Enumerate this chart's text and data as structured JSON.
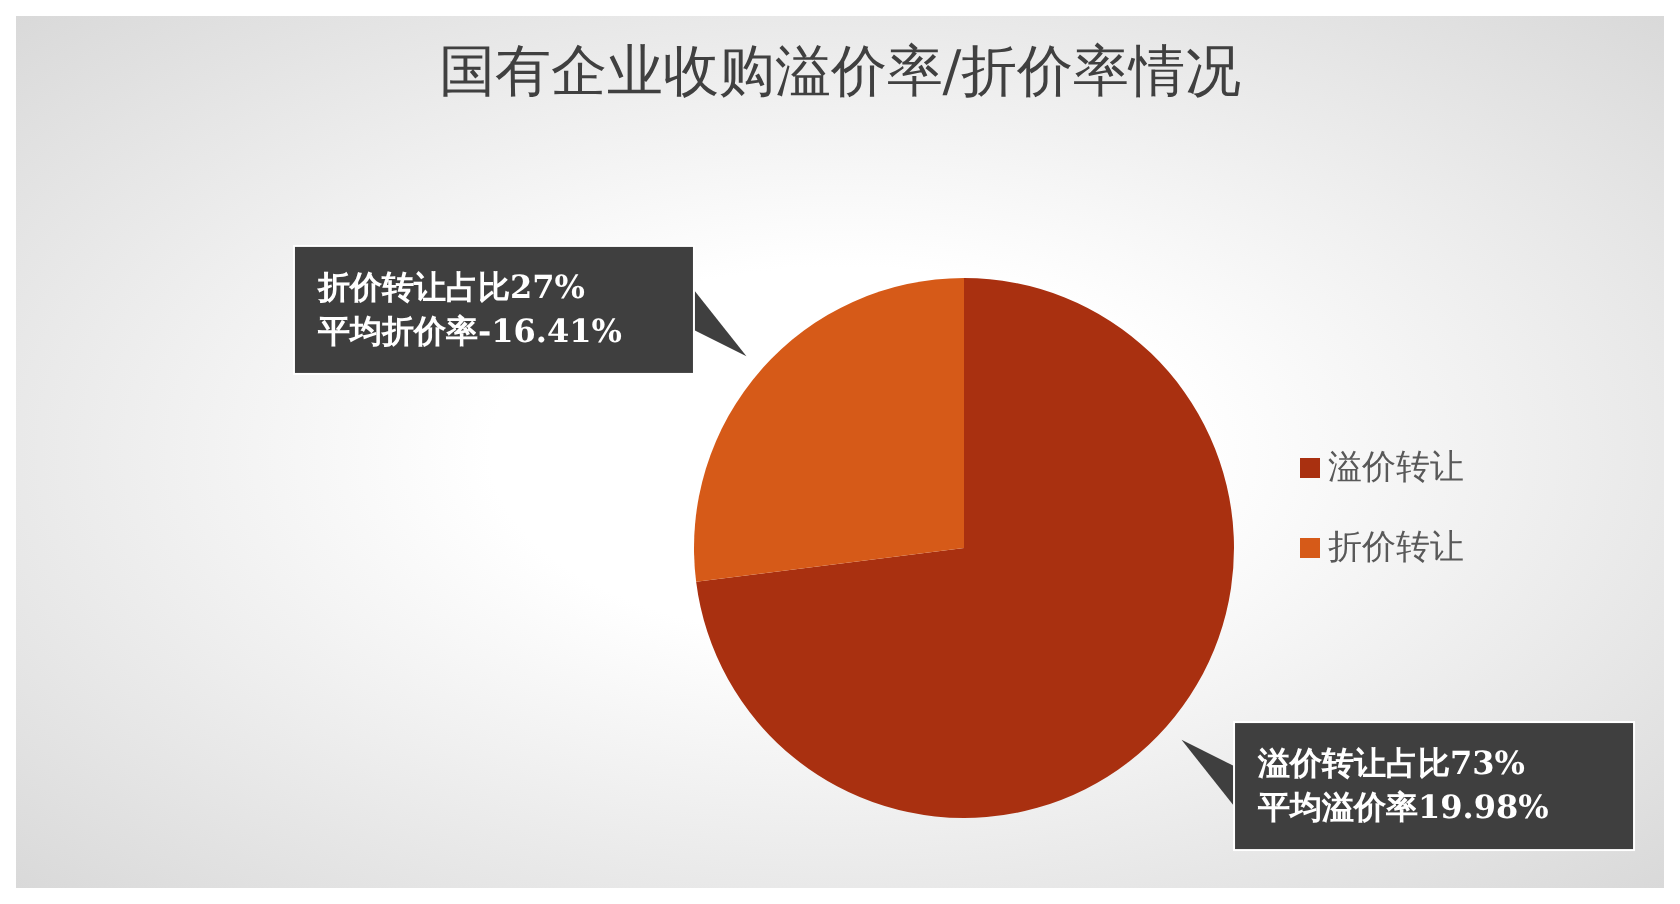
{
  "chart_data": {
    "type": "pie",
    "title": "国有企业收购溢价率/折价率情况",
    "categories": [
      "溢价转让",
      "折价转让"
    ],
    "values": [
      73,
      27
    ],
    "colors": [
      "#a93010",
      "#d65a18"
    ],
    "value_labels": [
      "溢价转让占比73%\n平均溢价率19.98%",
      "折价转让占比27%\n平均折价率-16.41%"
    ],
    "legend": "right"
  }
}
